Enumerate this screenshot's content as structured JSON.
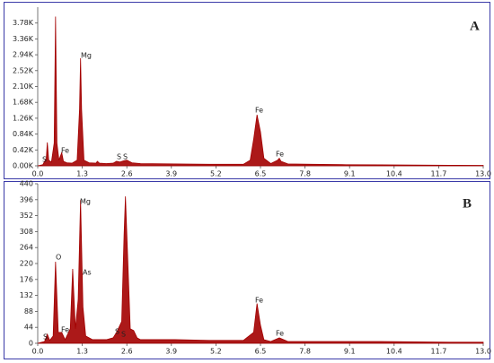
{
  "chart_data": [
    {
      "type": "area",
      "panel_label": "A",
      "color": "#a30000",
      "x": [
        0,
        0.15,
        0.25,
        0.28,
        0.32,
        0.4,
        0.48,
        0.52,
        0.56,
        0.62,
        0.7,
        0.75,
        0.85,
        1.0,
        1.15,
        1.22,
        1.25,
        1.28,
        1.35,
        1.5,
        1.7,
        1.74,
        1.8,
        2.0,
        2.2,
        2.3,
        2.4,
        2.5,
        2.6,
        2.75,
        3.0,
        4.0,
        5.0,
        6.0,
        6.2,
        6.3,
        6.4,
        6.5,
        6.6,
        6.8,
        7.0,
        7.05,
        7.1,
        7.3,
        8.0,
        9.0,
        10,
        11,
        12,
        13
      ],
      "values": [
        0,
        30,
        200,
        620,
        150,
        100,
        600,
        3950,
        600,
        150,
        350,
        120,
        80,
        70,
        150,
        1500,
        2850,
        1500,
        150,
        80,
        70,
        120,
        70,
        60,
        70,
        120,
        100,
        130,
        150,
        80,
        60,
        50,
        40,
        40,
        150,
        700,
        1350,
        900,
        200,
        60,
        150,
        200,
        120,
        50,
        40,
        30,
        25,
        20,
        15,
        10
      ],
      "xlim": [
        0,
        13
      ],
      "xticks": [
        {
          "value": 0,
          "label": "0.0"
        },
        1.3,
        2.6,
        3.9,
        5.2,
        6.5,
        7.8,
        9.1,
        10.4,
        11.7,
        {
          "value": 13,
          "label": "13.0"
        }
      ],
      "ylim": [
        0,
        4200
      ],
      "yticks": [
        {
          "value": 0,
          "label": "0.00K"
        },
        {
          "value": 420,
          "label": "0.42K"
        },
        {
          "value": 840,
          "label": "0.84K"
        },
        {
          "value": 1260,
          "label": "1.26K"
        },
        {
          "value": 1680,
          "label": "1.68K"
        },
        {
          "value": 2100,
          "label": "2.10K"
        },
        {
          "value": 2520,
          "label": "2.52K"
        },
        {
          "value": 2940,
          "label": "2.94K"
        },
        {
          "value": 3360,
          "label": "3.36K"
        },
        {
          "value": 3780,
          "label": "3.78K"
        }
      ],
      "annotations": [
        "S",
        "Fe",
        "Mg",
        "S",
        "S",
        "Fe",
        "Fe"
      ]
    },
    {
      "type": "area",
      "panel_label": "B",
      "color": "#a30000",
      "x": [
        0,
        0.2,
        0.28,
        0.35,
        0.45,
        0.52,
        0.6,
        0.7,
        0.8,
        0.95,
        1.02,
        1.1,
        1.18,
        1.25,
        1.32,
        1.4,
        1.6,
        2.0,
        2.2,
        2.3,
        2.45,
        2.52,
        2.56,
        2.62,
        2.7,
        2.8,
        2.9,
        3.0,
        4.0,
        5.0,
        6.0,
        6.3,
        6.4,
        6.5,
        6.6,
        6.8,
        7.05,
        7.3,
        8,
        9,
        10,
        11,
        12,
        13
      ],
      "values": [
        0,
        5,
        25,
        8,
        20,
        225,
        30,
        30,
        10,
        40,
        205,
        40,
        120,
        395,
        100,
        20,
        10,
        10,
        15,
        30,
        60,
        300,
        405,
        250,
        40,
        35,
        15,
        10,
        10,
        8,
        8,
        30,
        110,
        50,
        10,
        5,
        15,
        5,
        5,
        5,
        5,
        4,
        3,
        3
      ],
      "xlim": [
        0,
        13
      ],
      "xticks": [
        {
          "value": 0,
          "label": "0.0"
        },
        1.3,
        2.6,
        3.9,
        5.2,
        6.5,
        7.8,
        9.1,
        10.4,
        11.7,
        {
          "value": 13,
          "label": "13.0"
        }
      ],
      "ylim": [
        0,
        440
      ],
      "yticks": [
        0,
        44,
        88,
        132,
        176,
        220,
        264,
        308,
        352,
        396,
        440
      ],
      "annotations": [
        "S",
        "O",
        "Fe",
        "Mg",
        "As",
        "S",
        "S",
        "Fe",
        "Fe"
      ]
    }
  ]
}
